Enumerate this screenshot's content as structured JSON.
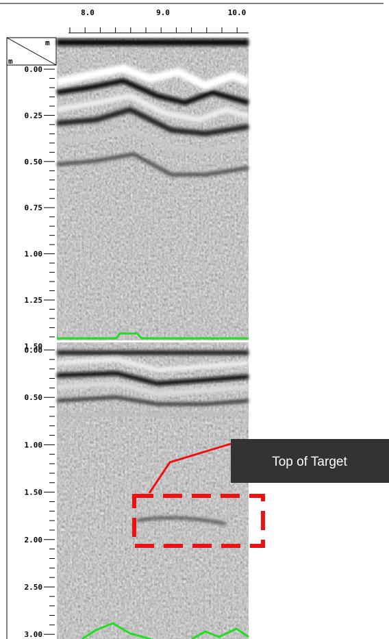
{
  "top_axis": {
    "labels": [
      "8.0",
      "9.0",
      "10.0"
    ]
  },
  "corner": {
    "top_unit": "m",
    "left_unit": "m"
  },
  "upper_depth_labels": [
    "0.00",
    "0.25",
    "0.50",
    "0.75",
    "1.00",
    "1.25",
    "1.50"
  ],
  "lower_depth_labels": [
    "0.00",
    "0.50",
    "1.00",
    "1.50",
    "2.00",
    "2.50",
    "3.00"
  ],
  "annotation": {
    "text": "Top of Target"
  }
}
